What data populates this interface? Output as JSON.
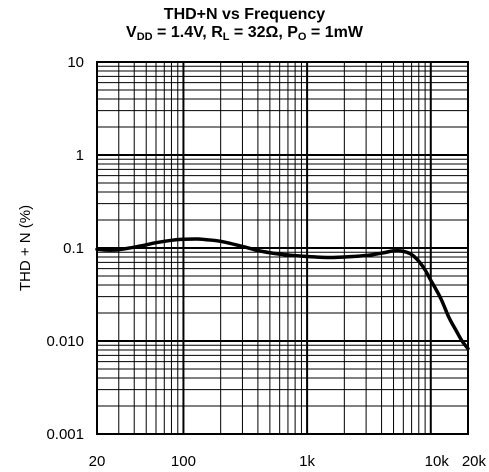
{
  "chart_data": {
    "type": "line",
    "title": "THD+N vs Frequency",
    "subtitle": {
      "vdd_label": "V",
      "vdd_sub": "DD",
      "vdd_value": " = 1.4V, ",
      "rl_label": "R",
      "rl_sub": "L",
      "rl_value": " = 32Ω, ",
      "po_label": "P",
      "po_sub": "O",
      "po_value": " = 1mW"
    },
    "xlabel": "",
    "ylabel": "THD + N (%)",
    "x_scale": "log",
    "y_scale": "log",
    "xlim": [
      20,
      20000
    ],
    "ylim": [
      0.001,
      10
    ],
    "grid": true,
    "x_ticks": [
      {
        "value": 20,
        "label": "20"
      },
      {
        "value": 100,
        "label": "100"
      },
      {
        "value": 1000,
        "label": "1k"
      },
      {
        "value": 10000,
        "label": "10k"
      },
      {
        "value": 20000,
        "label": "20k"
      }
    ],
    "y_ticks": [
      {
        "value": 0.001,
        "label": "0.001"
      },
      {
        "value": 0.01,
        "label": "0.010"
      },
      {
        "value": 0.1,
        "label": "0.1"
      },
      {
        "value": 1,
        "label": "1"
      },
      {
        "value": 10,
        "label": "10"
      }
    ],
    "series": [
      {
        "x": [
          20,
          25,
          30,
          40,
          50,
          60,
          80,
          100,
          130,
          150,
          200,
          300,
          400,
          500,
          700,
          1000,
          1500,
          2000,
          3000,
          4000,
          5000,
          6000,
          7000,
          8000,
          9000,
          10000,
          12000,
          14000,
          16000,
          18000,
          20000
        ],
        "y": [
          0.097,
          0.095,
          0.096,
          0.102,
          0.108,
          0.114,
          0.121,
          0.124,
          0.125,
          0.123,
          0.118,
          0.104,
          0.094,
          0.089,
          0.084,
          0.081,
          0.079,
          0.08,
          0.083,
          0.088,
          0.093,
          0.092,
          0.085,
          0.072,
          0.058,
          0.045,
          0.029,
          0.018,
          0.013,
          0.0099,
          0.0083
        ]
      }
    ]
  }
}
